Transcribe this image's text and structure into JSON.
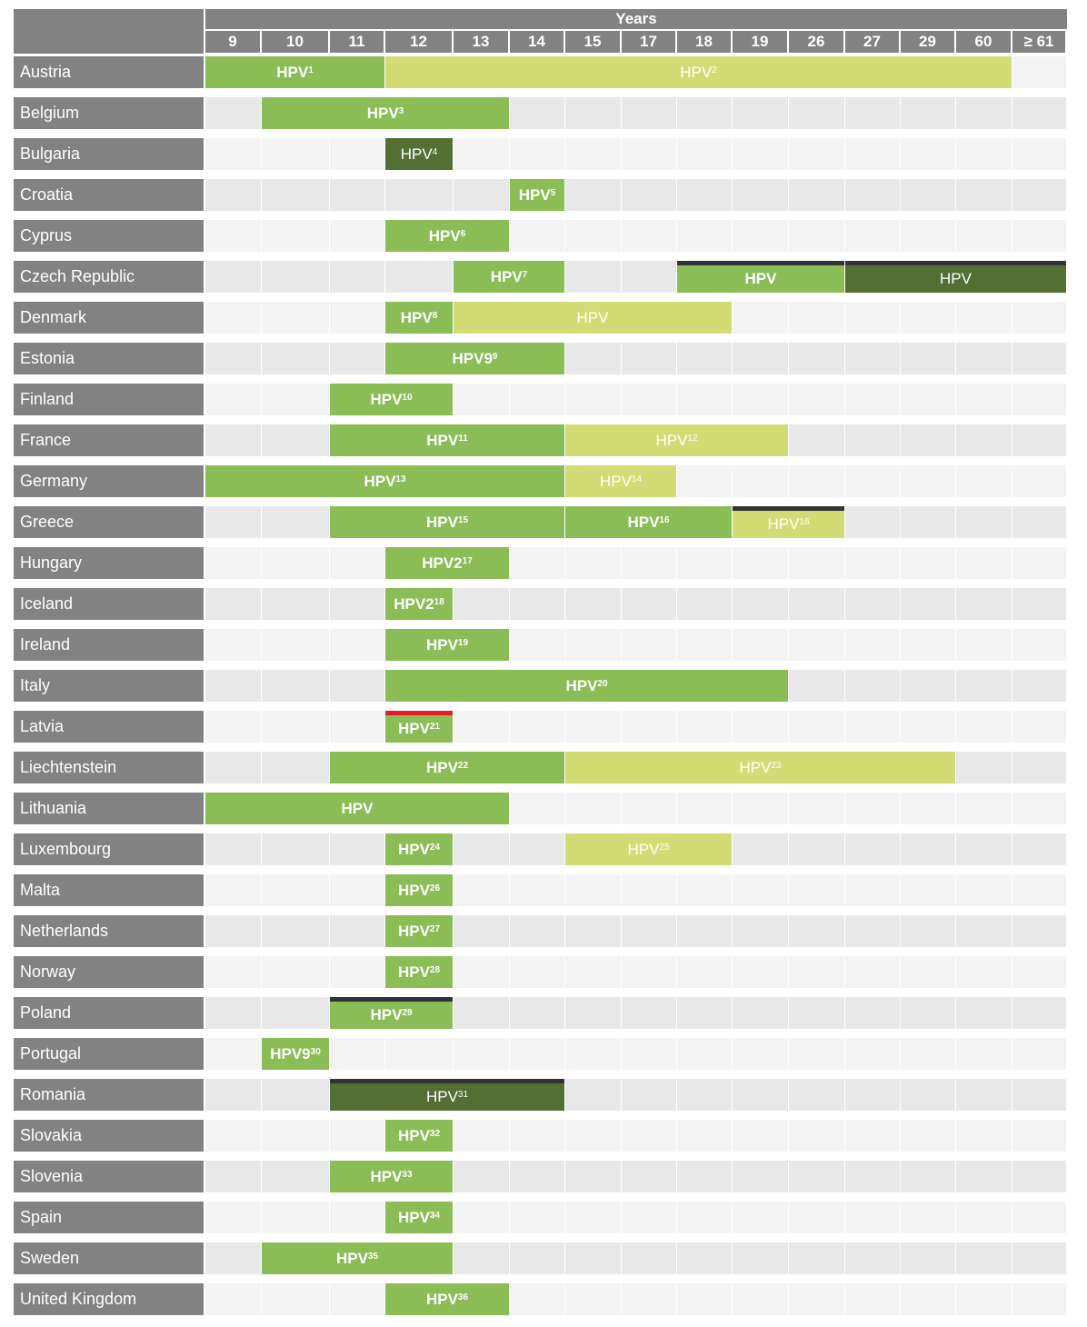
{
  "header": {
    "title": "Years"
  },
  "chart_data": {
    "type": "table",
    "title": "",
    "ages": [
      "9",
      "10",
      "11",
      "12",
      "13",
      "14",
      "15",
      "17",
      "18",
      "19",
      "26",
      "27",
      "29",
      "60",
      "≥ 61"
    ],
    "colors": {
      "header_gray": "#828282",
      "cell_light": "#f3f3f3",
      "cell_dark": "#e8e8e8",
      "green": "#8abd55",
      "light_green": "#d3dc74",
      "dark_green": "#536f34",
      "black_line": "#333333",
      "red_line": "#e21f26"
    },
    "rows": [
      {
        "country": "Austria",
        "bars": [
          {
            "start": "9",
            "end": "11",
            "label": "HPV",
            "sup": "1",
            "style": "green"
          },
          {
            "start": "12",
            "end": "60",
            "label": "HPV",
            "sup": "2",
            "style": "light"
          }
        ]
      },
      {
        "country": "Belgium",
        "bars": [
          {
            "start": "10",
            "end": "13",
            "label": "HPV",
            "sup": "3",
            "style": "green"
          }
        ]
      },
      {
        "country": "Bulgaria",
        "bars": [
          {
            "start": "12",
            "end": "12",
            "label": "HPV",
            "sup": "4",
            "style": "dark"
          }
        ]
      },
      {
        "country": "Croatia",
        "bars": [
          {
            "start": "14",
            "end": "14",
            "label": "HPV",
            "sup": "5",
            "style": "green"
          }
        ]
      },
      {
        "country": "Cyprus",
        "bars": [
          {
            "start": "12",
            "end": "13",
            "label": "HPV",
            "sup": "6",
            "style": "green"
          }
        ]
      },
      {
        "country": "Czech Republic",
        "bars": [
          {
            "start": "13",
            "end": "14",
            "label": "HPV",
            "sup": "7",
            "style": "green"
          },
          {
            "start": "18",
            "end": "26",
            "label": "HPV",
            "sup": "",
            "style": "green",
            "topline": "black"
          },
          {
            "start": "27",
            "end": "≥ 61",
            "label": "HPV",
            "sup": "",
            "style": "dark",
            "topline": "black"
          }
        ]
      },
      {
        "country": "Denmark",
        "bars": [
          {
            "start": "12",
            "end": "12",
            "label": "HPV",
            "sup": "8",
            "style": "green"
          },
          {
            "start": "13",
            "end": "18",
            "label": "HPV",
            "sup": "",
            "style": "light"
          }
        ]
      },
      {
        "country": "Estonia",
        "bars": [
          {
            "start": "12",
            "end": "14",
            "label": "HPV9",
            "sup": "9",
            "style": "green"
          }
        ]
      },
      {
        "country": "Finland",
        "bars": [
          {
            "start": "11",
            "end": "12",
            "label": "HPV",
            "sup": "10",
            "style": "green"
          }
        ]
      },
      {
        "country": "France",
        "bars": [
          {
            "start": "11",
            "end": "14",
            "label": "HPV",
            "sup": "11",
            "style": "green"
          },
          {
            "start": "15",
            "end": "19",
            "label": "HPV",
            "sup": "12",
            "style": "light"
          }
        ]
      },
      {
        "country": "Germany",
        "bars": [
          {
            "start": "9",
            "end": "14",
            "label": "HPV",
            "sup": "13",
            "style": "green"
          },
          {
            "start": "15",
            "end": "17",
            "label": "HPV",
            "sup": "14",
            "style": "light"
          }
        ]
      },
      {
        "country": "Greece",
        "bars": [
          {
            "start": "11",
            "end": "14",
            "label": "HPV",
            "sup": "15",
            "style": "green"
          },
          {
            "start": "15",
            "end": "18",
            "label": "HPV",
            "sup": "16",
            "style": "green"
          },
          {
            "start": "19",
            "end": "26",
            "label": "HPV",
            "sup": "16",
            "style": "light",
            "topline": "black"
          }
        ]
      },
      {
        "country": "Hungary",
        "bars": [
          {
            "start": "12",
            "end": "13",
            "label": "HPV2",
            "sup": "17",
            "style": "green"
          }
        ]
      },
      {
        "country": "Iceland",
        "bars": [
          {
            "start": "12",
            "end": "12",
            "label": "HPV2",
            "sup": "18",
            "style": "green"
          }
        ]
      },
      {
        "country": "Ireland",
        "bars": [
          {
            "start": "12",
            "end": "13",
            "label": "HPV",
            "sup": "19",
            "style": "green"
          }
        ]
      },
      {
        "country": "Italy",
        "bars": [
          {
            "start": "12",
            "end": "19",
            "label": "HPV",
            "sup": "20",
            "style": "green"
          }
        ]
      },
      {
        "country": "Latvia",
        "bars": [
          {
            "start": "12",
            "end": "12",
            "label": "HPV",
            "sup": "21",
            "style": "green",
            "topline": "red"
          }
        ]
      },
      {
        "country": "Liechtenstein",
        "bars": [
          {
            "start": "11",
            "end": "14",
            "label": "HPV",
            "sup": "22",
            "style": "green"
          },
          {
            "start": "15",
            "end": "29",
            "label": "HPV",
            "sup": "23",
            "style": "light"
          }
        ]
      },
      {
        "country": "Lithuania",
        "bars": [
          {
            "start": "9",
            "end": "13",
            "label": "HPV",
            "sup": "",
            "style": "green"
          }
        ]
      },
      {
        "country": "Luxembourg",
        "bars": [
          {
            "start": "12",
            "end": "12",
            "label": "HPV",
            "sup": "24",
            "style": "green"
          },
          {
            "start": "15",
            "end": "18",
            "label": "HPV",
            "sup": "25",
            "style": "light"
          }
        ]
      },
      {
        "country": "Malta",
        "bars": [
          {
            "start": "12",
            "end": "12",
            "label": "HPV",
            "sup": "26",
            "style": "green"
          }
        ]
      },
      {
        "country": "Netherlands",
        "bars": [
          {
            "start": "12",
            "end": "12",
            "label": "HPV",
            "sup": "27",
            "style": "green"
          }
        ]
      },
      {
        "country": "Norway",
        "bars": [
          {
            "start": "12",
            "end": "12",
            "label": "HPV",
            "sup": "28",
            "style": "green"
          }
        ]
      },
      {
        "country": "Poland",
        "bars": [
          {
            "start": "11",
            "end": "12",
            "label": "HPV",
            "sup": "29",
            "style": "green",
            "topline": "black"
          }
        ]
      },
      {
        "country": "Portugal",
        "bars": [
          {
            "start": "10",
            "end": "10",
            "label": "HPV9",
            "sup": "30",
            "style": "green"
          }
        ]
      },
      {
        "country": "Romania",
        "bars": [
          {
            "start": "11",
            "end": "14",
            "label": "HPV",
            "sup": "31",
            "style": "dark",
            "topline": "black"
          }
        ]
      },
      {
        "country": "Slovakia",
        "bars": [
          {
            "start": "12",
            "end": "12",
            "label": "HPV",
            "sup": "32",
            "style": "green"
          }
        ]
      },
      {
        "country": "Slovenia",
        "bars": [
          {
            "start": "11",
            "end": "12",
            "label": "HPV",
            "sup": "33",
            "style": "green"
          }
        ]
      },
      {
        "country": "Spain",
        "bars": [
          {
            "start": "12",
            "end": "12",
            "label": "HPV",
            "sup": "34",
            "style": "green"
          }
        ]
      },
      {
        "country": "Sweden",
        "bars": [
          {
            "start": "10",
            "end": "12",
            "label": "HPV",
            "sup": "35",
            "style": "green"
          }
        ]
      },
      {
        "country": "United Kingdom",
        "bars": [
          {
            "start": "12",
            "end": "13",
            "label": "HPV",
            "sup": "36",
            "style": "green"
          }
        ]
      }
    ]
  }
}
